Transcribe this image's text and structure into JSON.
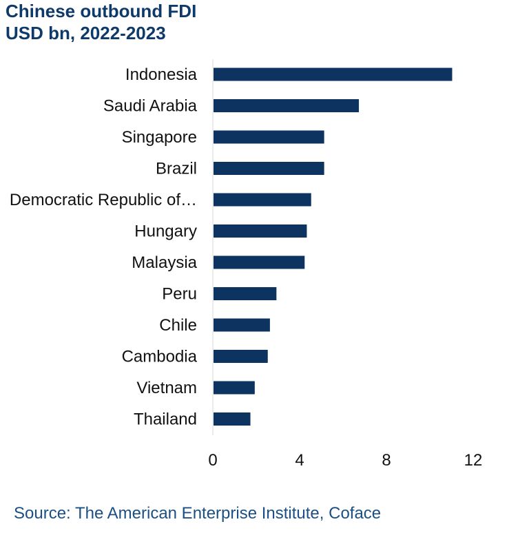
{
  "chart_data": {
    "type": "bar",
    "orientation": "horizontal",
    "title_lines": [
      "Chinese outbound FDI",
      "USD bn, 2022-2023"
    ],
    "categories": [
      "Indonesia",
      "Saudi Arabia",
      "Singapore",
      "Brazil",
      "Democratic Republic of…",
      "Hungary",
      "Malaysia",
      "Peru",
      "Chile",
      "Cambodia",
      "Vietnam",
      "Thailand"
    ],
    "values": [
      11.0,
      6.7,
      5.1,
      5.1,
      4.5,
      4.3,
      4.2,
      2.9,
      2.6,
      2.5,
      1.9,
      1.7
    ],
    "xlim": [
      0,
      12
    ],
    "xticks": [
      "0",
      "4",
      "8",
      "12"
    ],
    "xlabel": "",
    "ylabel": "",
    "bar_color": "#0d3461",
    "grid": false,
    "source": "Source: The American Enterprise Institute, Coface"
  }
}
